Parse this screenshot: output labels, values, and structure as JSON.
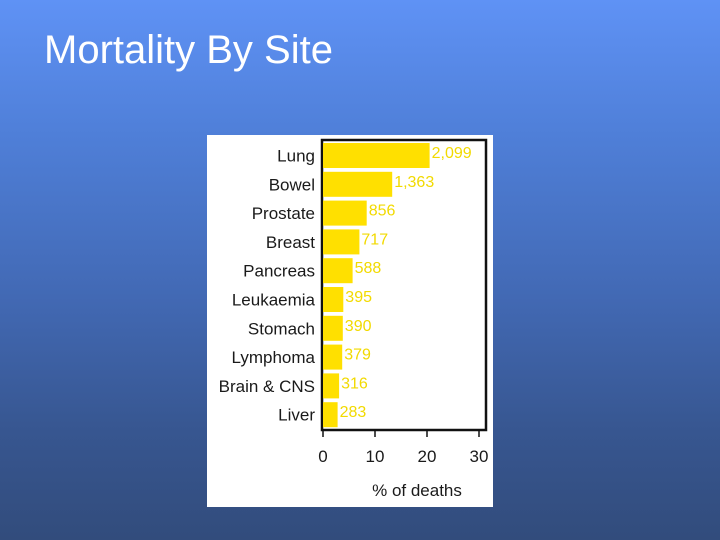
{
  "slide": {
    "title": "Mortality By Site"
  },
  "chart_data": {
    "type": "bar",
    "orientation": "horizontal",
    "categories": [
      "Lung",
      "Bowel",
      "Prostate",
      "Breast",
      "Pancreas",
      "Leukaemia",
      "Stomach",
      "Lymphoma",
      "Brain & CNS",
      "Liver"
    ],
    "values": [
      20.5,
      13.3,
      8.4,
      7.0,
      5.7,
      3.9,
      3.8,
      3.7,
      3.1,
      2.8
    ],
    "data_labels": [
      "2,099",
      "1,363",
      "856",
      "717",
      "588",
      "395",
      "390",
      "379",
      "316",
      "283"
    ],
    "xlabel": "% of deaths",
    "xlim": [
      0,
      30
    ],
    "xticks": [
      0,
      10,
      20,
      30
    ],
    "bar_color": "#ffe000",
    "label_color": "#f2da00",
    "grid": false
  }
}
